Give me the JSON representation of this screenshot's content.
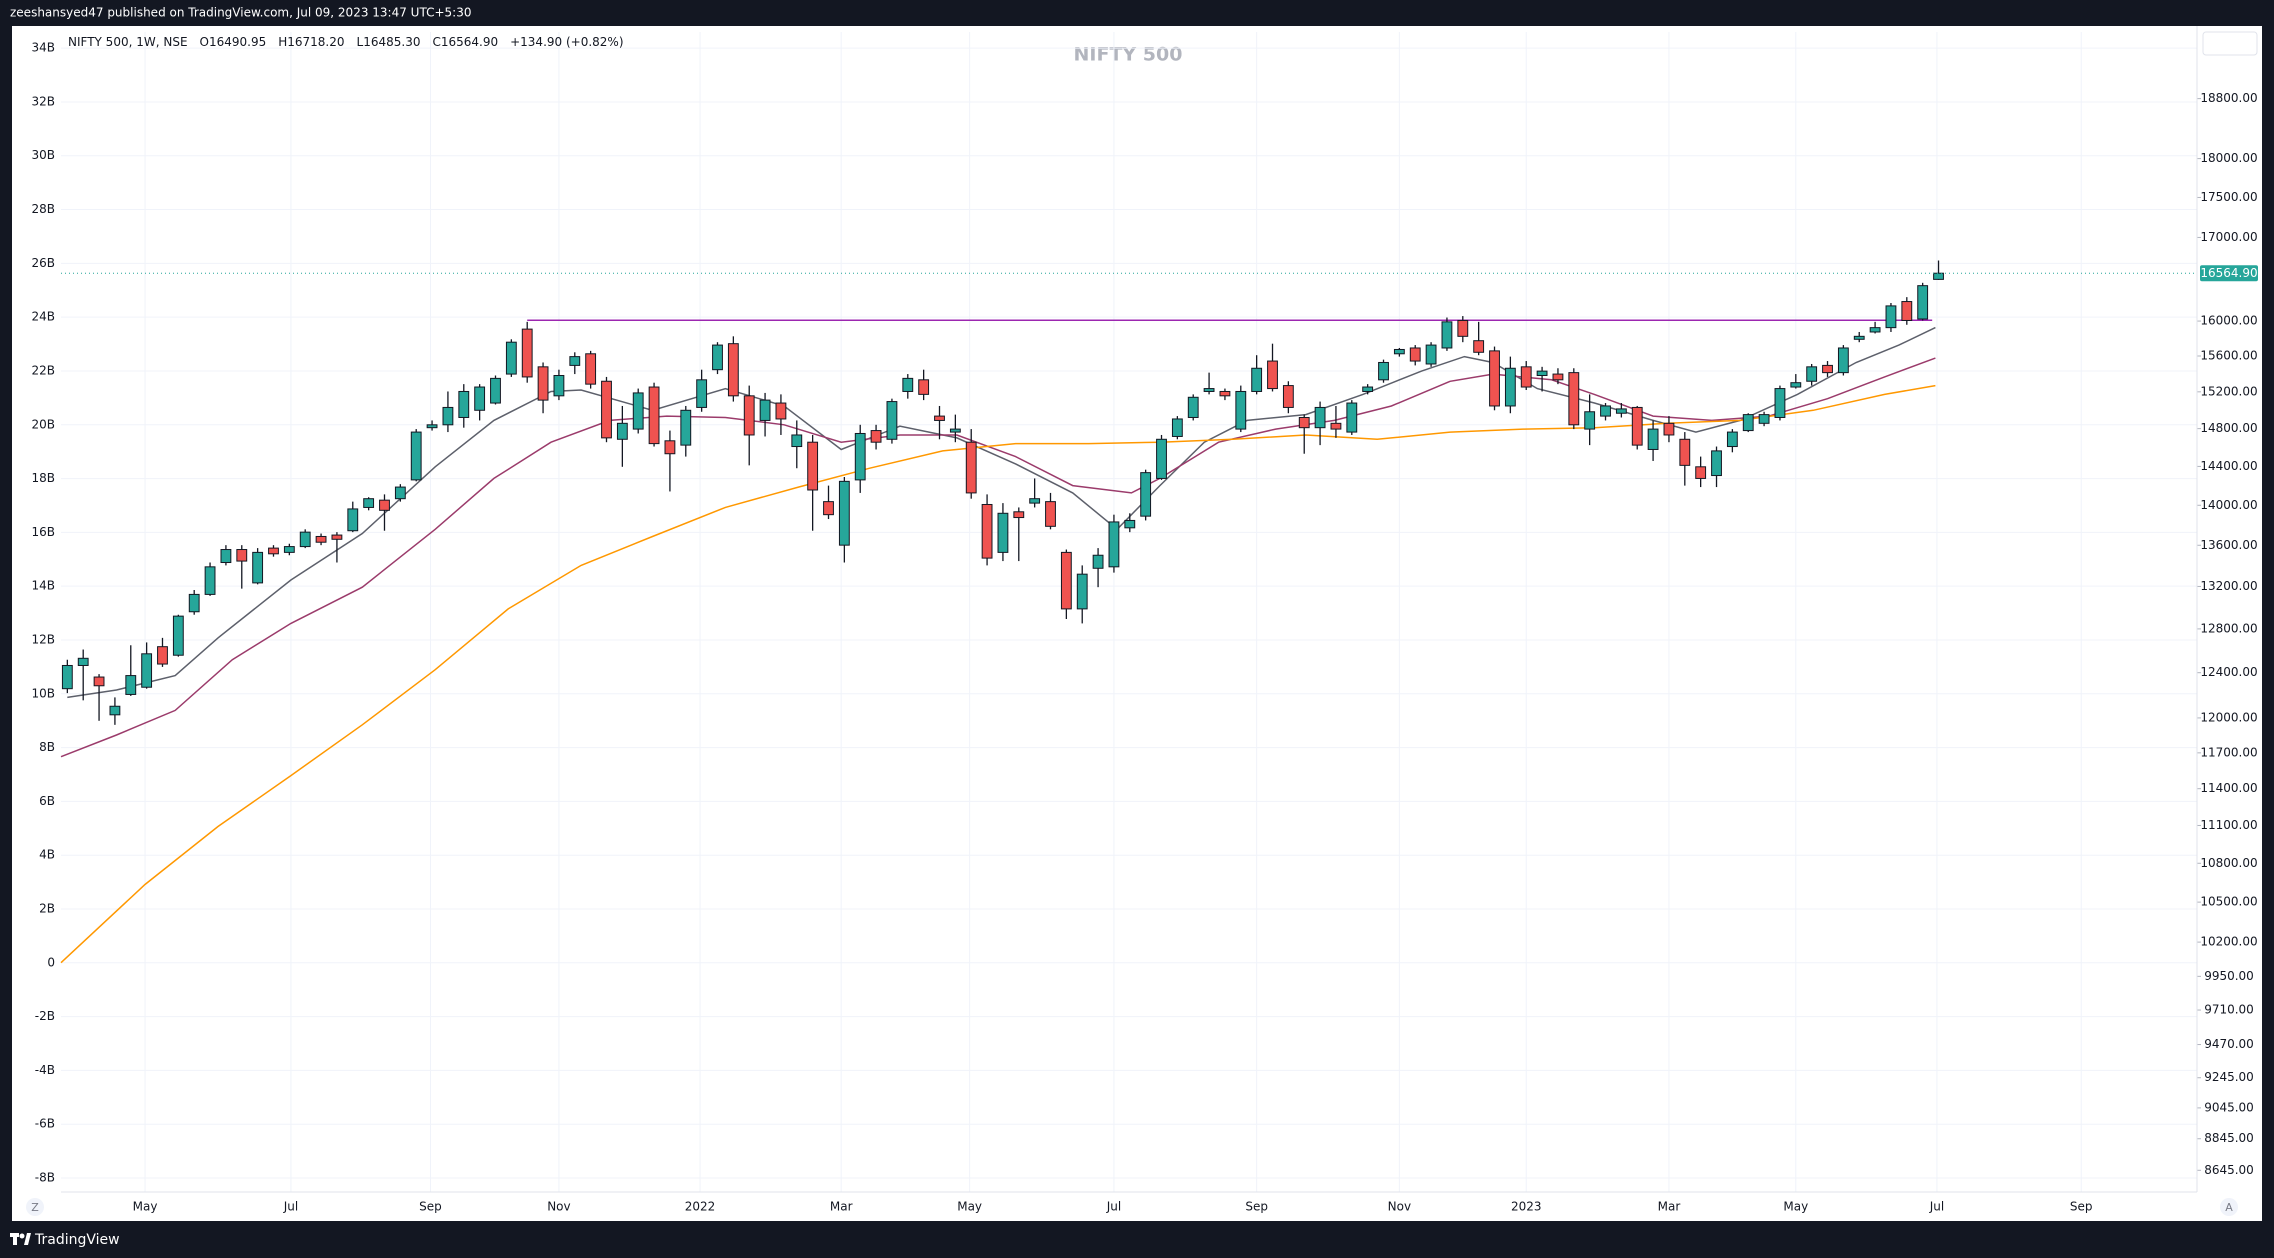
{
  "header": {
    "text": "zeeshansyed47 published on TradingView.com, Jul 09, 2023 13:47 UTC+5:30"
  },
  "footer": {
    "brand": "TradingView"
  },
  "scale_buttons": [
    "Z",
    "A"
  ],
  "chart_data": {
    "type": "candlestick",
    "title": "NIFTY 500",
    "legend": [
      "NIFTY 500, 1W, NSE",
      "O16490.95",
      "H16718.20",
      "L16485.30",
      "C16564.90",
      "+134.90 (+0.82%)"
    ],
    "last_price_label": "16564.90",
    "up_color": "#26a69a",
    "down_color": "#ef5350",
    "wick_color": "#131722",
    "log_scale": true,
    "grid": true,
    "xlim": [
      -0.4,
      134.3
    ],
    "xticks": [
      {
        "value": 4.9,
        "label": "May"
      },
      {
        "value": 14.1,
        "label": "Jul"
      },
      {
        "value": 22.9,
        "label": "Sep"
      },
      {
        "value": 31.0,
        "label": "Nov"
      },
      {
        "value": 39.9,
        "label": "2022"
      },
      {
        "value": 48.8,
        "label": "Mar"
      },
      {
        "value": 56.9,
        "label": "May"
      },
      {
        "value": 66.0,
        "label": "Jul"
      },
      {
        "value": 75.0,
        "label": "Sep"
      },
      {
        "value": 84.0,
        "label": "Nov"
      },
      {
        "value": 92.0,
        "label": "2023"
      },
      {
        "value": 101.0,
        "label": "Mar"
      },
      {
        "value": 109.0,
        "label": "May"
      },
      {
        "value": 117.9,
        "label": "Jul"
      },
      {
        "value": 127.0,
        "label": "Sep"
      }
    ],
    "ylim": [
      8510,
      19730
    ],
    "yticks": [
      {
        "value": 18800,
        "label": "18800.00"
      },
      {
        "value": 18000,
        "label": "18000.00"
      },
      {
        "value": 17500,
        "label": "17500.00"
      },
      {
        "value": 17000,
        "label": "17000.00"
      },
      {
        "value": 16000,
        "label": "16000.00"
      },
      {
        "value": 15600,
        "label": "15600.00"
      },
      {
        "value": 15200,
        "label": "15200.00"
      },
      {
        "value": 14800,
        "label": "14800.00"
      },
      {
        "value": 14400,
        "label": "14400.00"
      },
      {
        "value": 14000,
        "label": "14000.00"
      },
      {
        "value": 13600,
        "label": "13600.00"
      },
      {
        "value": 13200,
        "label": "13200.00"
      },
      {
        "value": 12800,
        "label": "12800.00"
      },
      {
        "value": 12400,
        "label": "12400.00"
      },
      {
        "value": 12000,
        "label": "12000.00"
      },
      {
        "value": 11700,
        "label": "11700.00"
      },
      {
        "value": 11400,
        "label": "11400.00"
      },
      {
        "value": 11100,
        "label": "11100.00"
      },
      {
        "value": 10800,
        "label": "10800.00"
      },
      {
        "value": 10500,
        "label": "10500.00"
      },
      {
        "value": 10200,
        "label": "10200.00"
      },
      {
        "value": 9950,
        "label": "9950.00"
      },
      {
        "value": 9710,
        "label": "9710.00"
      },
      {
        "value": 9470,
        "label": "9470.00"
      },
      {
        "value": 9245,
        "label": "9245.00"
      },
      {
        "value": 9045,
        "label": "9045.00"
      },
      {
        "value": 8845,
        "label": "8845.00"
      },
      {
        "value": 8645,
        "label": "8645.00"
      }
    ],
    "y2lim": [
      -8520000000,
      34600000000
    ],
    "y2ticks": [
      {
        "value": 34000000000,
        "label": "34B"
      },
      {
        "value": 32000000000,
        "label": "32B"
      },
      {
        "value": 30000000000,
        "label": "30B"
      },
      {
        "value": 28000000000,
        "label": "28B"
      },
      {
        "value": 26000000000,
        "label": "26B"
      },
      {
        "value": 24000000000,
        "label": "24B"
      },
      {
        "value": 22000000000,
        "label": "22B"
      },
      {
        "value": 20000000000,
        "label": "20B"
      },
      {
        "value": 18000000000,
        "label": "18B"
      },
      {
        "value": 16000000000,
        "label": "16B"
      },
      {
        "value": 14000000000,
        "label": "14B"
      },
      {
        "value": 12000000000,
        "label": "12B"
      },
      {
        "value": 10000000000,
        "label": "10B"
      },
      {
        "value": 8000000000,
        "label": "8B"
      },
      {
        "value": 6000000000,
        "label": "6B"
      },
      {
        "value": 4000000000,
        "label": "4B"
      },
      {
        "value": 2000000000,
        "label": "2B"
      },
      0,
      {
        "value": -2000000000,
        "label": "-2B"
      },
      {
        "value": -4000000000,
        "label": "-4B"
      },
      {
        "value": -6000000000,
        "label": "-6B"
      },
      {
        "value": -8000000000,
        "label": "-8B"
      }
    ],
    "open": [
      12257,
      12465,
      12361,
      12027,
      12206,
      12270,
      12636,
      12558,
      12960,
      13124,
      13431,
      13558,
      13234,
      13572,
      13530,
      13587,
      13687,
      13701,
      13744,
      13978,
      14052,
      14067,
      14260,
      14810,
      14841,
      14920,
      14998,
      15077,
      15397,
      15907,
      15478,
      15156,
      15494,
      15625,
      15317,
      14686,
      14795,
      15253,
      14670,
      14624,
      15029,
      15446,
      15740,
      15156,
      14888,
      15077,
      14609,
      14655,
      14037,
      13601,
      14260,
      14779,
      14686,
      15204,
      15333,
      14935,
      14763,
      14655,
      14008,
      13530,
      13934,
      14022,
      14037,
      13530,
      12987,
      13375,
      13389,
      13773,
      13890,
      14275,
      14716,
      14920,
      15204,
      15204,
      14795,
      15204,
      15543,
      15269,
      14920,
      14810,
      14857,
      14763,
      15204,
      15333,
      15625,
      15691,
      15510,
      15691,
      16007,
      15774,
      15658,
      15045,
      15478,
      15381,
      15397,
      15413,
      14795,
      14935,
      14966,
      15029,
      14578,
      14857,
      14686,
      14396,
      14305,
      14609,
      14779,
      14857,
      14920,
      15253,
      15317,
      15494,
      15413,
      15790,
      15874,
      15924,
      16228,
      16024,
      16490.95
    ],
    "high": [
      12517,
      12610,
      12387,
      12180,
      12649,
      12675,
      12717,
      12932,
      13166,
      13431,
      13601,
      13601,
      13572,
      13601,
      13615,
      13758,
      13716,
      13730,
      14037,
      14082,
      14111,
      14216,
      14795,
      14888,
      15204,
      15285,
      15285,
      15381,
      15790,
      15991,
      15527,
      15446,
      15642,
      15658,
      15365,
      15045,
      15236,
      15301,
      14779,
      15045,
      15446,
      15757,
      15824,
      15269,
      15188,
      15172,
      14888,
      14732,
      14201,
      14290,
      14841,
      14841,
      15125,
      15397,
      15446,
      15045,
      14951,
      14795,
      14111,
      14022,
      13978,
      14275,
      14126,
      13558,
      13403,
      13572,
      13905,
      13919,
      14366,
      14732,
      14935,
      15172,
      15413,
      15236,
      15269,
      15609,
      15740,
      15317,
      14951,
      15093,
      15045,
      15109,
      15285,
      15559,
      15691,
      15724,
      15757,
      16041,
      16058,
      15991,
      15707,
      15593,
      15543,
      15478,
      15462,
      15462,
      15172,
      15077,
      15077,
      15045,
      14888,
      14935,
      14763,
      14503,
      14609,
      14795,
      14966,
      14982,
      15269,
      15397,
      15510,
      15543,
      15724,
      15874,
      15991,
      16211,
      16280,
      16450,
      16718.2
    ],
    "low": [
      12218,
      12154,
      11975,
      11940,
      12193,
      12257,
      12452,
      12545,
      12932,
      13110,
      13403,
      13179,
      13220,
      13488,
      13502,
      13572,
      13601,
      13431,
      13730,
      13949,
      13744,
      14037,
      14245,
      14779,
      14763,
      14810,
      14888,
      15061,
      15365,
      15301,
      14966,
      15109,
      15397,
      15236,
      14655,
      14396,
      14748,
      14609,
      14141,
      14503,
      14982,
      15397,
      15093,
      14411,
      14716,
      14732,
      14381,
      13744,
      13861,
      13431,
      14126,
      14578,
      14640,
      15125,
      15109,
      14686,
      14655,
      14067,
      13403,
      13445,
      13445,
      13978,
      13758,
      12892,
      12851,
      13193,
      13333,
      13730,
      13847,
      14260,
      14686,
      14888,
      15172,
      15109,
      14763,
      15172,
      15204,
      14966,
      14533,
      14624,
      14701,
      14732,
      15172,
      15301,
      15593,
      15494,
      15478,
      15658,
      15757,
      15609,
      14998,
      14966,
      15220,
      15204,
      15285,
      14795,
      14624,
      14888,
      14920,
      14578,
      14457,
      14655,
      14201,
      14186,
      14186,
      14548,
      14763,
      14826,
      14888,
      15236,
      15269,
      15365,
      15381,
      15757,
      15857,
      15874,
      15957,
      16007,
      16485.3
    ],
    "close": [
      12465,
      12530,
      12283,
      12102,
      12374,
      12571,
      12478,
      12919,
      13124,
      13389,
      13558,
      13445,
      13530,
      13516,
      13587,
      13730,
      13630,
      13659,
      13963,
      14067,
      13949,
      14186,
      14763,
      14841,
      15029,
      15204,
      15253,
      15349,
      15757,
      15365,
      15109,
      15381,
      15593,
      15285,
      14701,
      14857,
      15188,
      14640,
      14533,
      14998,
      15333,
      15724,
      15156,
      14732,
      15109,
      14904,
      14732,
      14156,
      13905,
      14245,
      14748,
      14655,
      15093,
      15349,
      15172,
      14888,
      14795,
      14126,
      13474,
      13919,
      13876,
      14067,
      13788,
      12987,
      13318,
      13502,
      13832,
      13847,
      14335,
      14686,
      14904,
      15140,
      15236,
      15156,
      15204,
      15462,
      15236,
      15029,
      14810,
      15029,
      14795,
      15077,
      15253,
      15527,
      15674,
      15543,
      15724,
      15991,
      15824,
      15642,
      15045,
      15462,
      15253,
      15430,
      15333,
      14841,
      14982,
      15045,
      15013,
      14624,
      14795,
      14732,
      14411,
      14275,
      14563,
      14763,
      14951,
      14951,
      15236,
      15301,
      15478,
      15413,
      15691,
      15824,
      15924,
      16177,
      16007,
      16416,
      16564.9
    ],
    "lines": [
      {
        "color": "#5d606b",
        "x": [
          0,
          3.1,
          6.8,
          9.5,
          14.1,
          18.6,
          23.2,
          26.9,
          30.5,
          32.4,
          36.9,
          41.5,
          45.2,
          48.8,
          52.5,
          56.1,
          59.8,
          63.4,
          66.2,
          68.9,
          71.7,
          74.4,
          78.1,
          81.7,
          85.4,
          88.1,
          89.9,
          92.7,
          96.3,
          100,
          102.7,
          105.5,
          109.1,
          112.8,
          115.5,
          117.8
        ],
        "values": [
          12180,
          12245,
          12374,
          12717,
          13262,
          13716,
          14396,
          14888,
          15204,
          15220,
          14998,
          15236,
          15045,
          14578,
          14826,
          14701,
          14426,
          14126,
          13758,
          14201,
          14655,
          14888,
          14951,
          15172,
          15430,
          15593,
          15527,
          15236,
          15077,
          14888,
          14763,
          14888,
          15172,
          15527,
          15724,
          15924
        ]
      },
      {
        "color": "#9b3b6b",
        "x": [
          -0.4,
          3.1,
          6.8,
          10.4,
          14.1,
          18.6,
          23.2,
          26.9,
          30.5,
          34.2,
          37.8,
          41.5,
          45.2,
          48.8,
          52.5,
          56.1,
          59.8,
          63.4,
          67.1,
          68.9,
          72.6,
          76.2,
          79.9,
          83.5,
          87.2,
          89.9,
          93.6,
          96.3,
          100,
          103.7,
          107.3,
          111,
          114.6,
          117.8
        ],
        "values": [
          11667,
          11852,
          12066,
          12517,
          12851,
          13193,
          13758,
          14275,
          14655,
          14888,
          14935,
          14920,
          14841,
          14655,
          14732,
          14732,
          14503,
          14201,
          14126,
          14275,
          14655,
          14795,
          14888,
          15045,
          15317,
          15397,
          15333,
          15172,
          14935,
          14888,
          14935,
          15125,
          15365,
          15576
        ]
      },
      {
        "color": "#ff9800",
        "x": [
          -0.4,
          4.9,
          9.5,
          14.1,
          18.6,
          23.2,
          27.8,
          32.4,
          36.9,
          41.5,
          46.1,
          50.6,
          55.2,
          59.8,
          64.4,
          68.9,
          73.5,
          78.1,
          82.6,
          87.2,
          91.8,
          96.3,
          100.9,
          105.5,
          110.1,
          114.6,
          117.8
        ],
        "values": [
          10049,
          10635,
          11092,
          11509,
          11940,
          12427,
          12987,
          13403,
          13687,
          13978,
          14186,
          14381,
          14563,
          14640,
          14640,
          14655,
          14686,
          14732,
          14686,
          14763,
          14795,
          14810,
          14857,
          14888,
          14998,
          15172,
          15269
        ]
      }
    ],
    "hline": {
      "value": 16010,
      "x": [
        29,
        117.6
      ],
      "color": "#9c27b0"
    }
  }
}
